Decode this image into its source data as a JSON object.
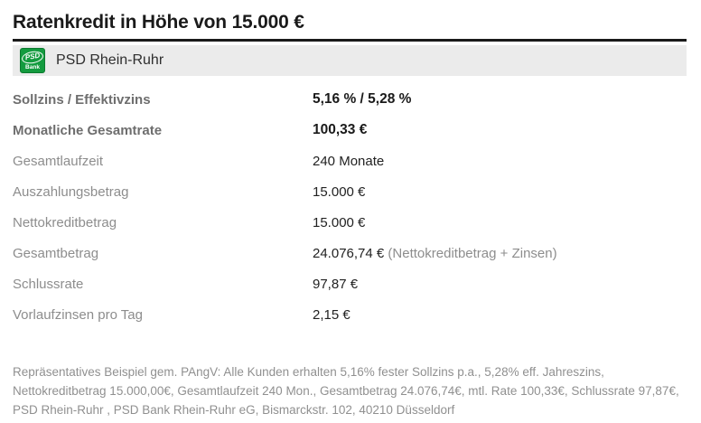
{
  "page": {
    "title": "Ratenkredit in Höhe von 15.000 €"
  },
  "bank": {
    "name": "PSD Rhein-Ruhr",
    "logo_text_top": "PSD",
    "logo_text_bottom": "Bank"
  },
  "table": {
    "rows": [
      {
        "label": "Sollzins / Effektivzins",
        "value": "5,16 % / 5,28 %",
        "bold": true
      },
      {
        "label": "Monatliche Gesamtrate",
        "value": "100,33 €",
        "bold": true
      },
      {
        "label": "Gesamtlaufzeit",
        "value": "240 Monate",
        "bold": false
      },
      {
        "label": "Auszahlungsbetrag",
        "value": "15.000 €",
        "bold": false
      },
      {
        "label": "Nettokreditbetrag",
        "value": "15.000 €",
        "bold": false
      },
      {
        "label": "Gesamtbetrag",
        "value": "24.076,74 €",
        "note": "(Nettokreditbetrag + Zinsen)",
        "bold": false
      },
      {
        "label": "Schlussrate",
        "value": "97,87 €",
        "bold": false
      },
      {
        "label": "Vorlaufzinsen pro Tag",
        "value": "2,15 €",
        "bold": false
      }
    ]
  },
  "footnote": "Repräsentatives Beispiel gem. PAngV: Alle Kunden erhalten 5,16% fester Sollzins p.a., 5,28% eff. Jahreszins, Nettokreditbetrag 15.000,00€, Gesamtlaufzeit 240 Mon., Gesamtbetrag 24.076,74€, mtl. Rate 100,33€, Schlussrate 97,87€, PSD Rhein-Ruhr , PSD Bank Rhein-Ruhr eG, Bismarckstr. 102, 40210 Düsseldorf",
  "colors": {
    "title_text": "#1a1a1a",
    "banner_background": "#ebebeb",
    "logo_green": "#149b3f",
    "bold_label_gray": "#6e6e6e",
    "label_gray": "#8d8d8d",
    "value_dark": "#222222",
    "footnote_gray": "#909090"
  }
}
